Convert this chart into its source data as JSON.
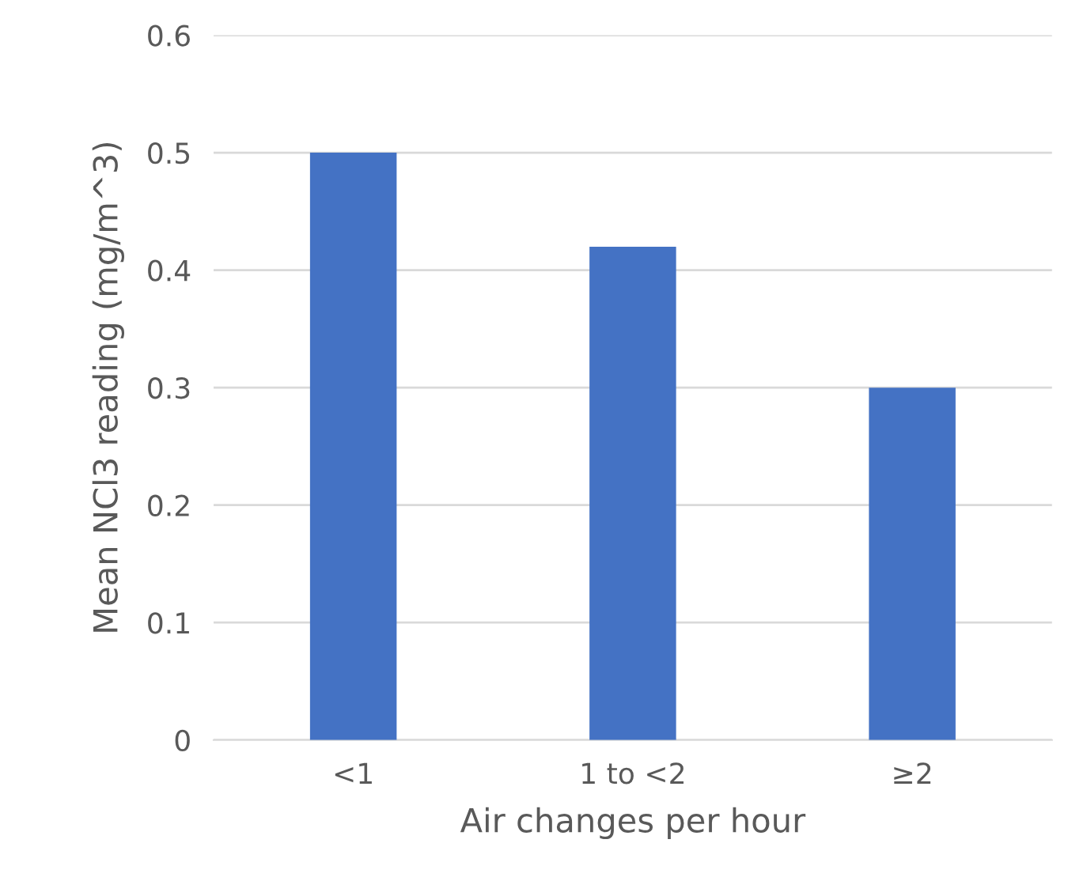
{
  "chart_data": {
    "type": "bar",
    "xlabel": "Air changes per hour",
    "ylabel": "Mean NCl3 reading (mg/m^3)",
    "categories": [
      "<1",
      "1 to <2",
      "≥2"
    ],
    "values": [
      0.5,
      0.42,
      0.3
    ],
    "color": "#4472c4",
    "ylim": [
      0,
      0.6
    ],
    "yticks": [
      0,
      0.1,
      0.2,
      0.3,
      0.4,
      0.5,
      0.6
    ],
    "grid": "y"
  }
}
